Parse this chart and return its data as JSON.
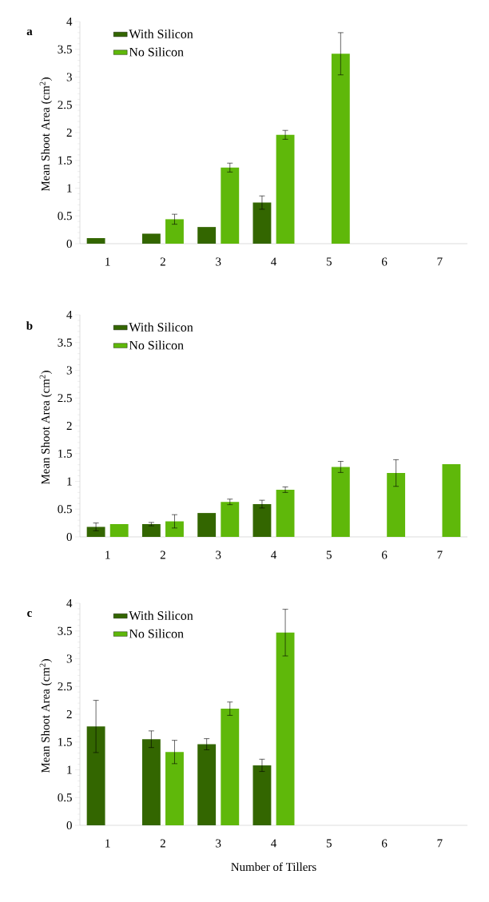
{
  "chart_data": [
    {
      "type": "bar",
      "title": "a",
      "ylabel": "Mean Shoot Area (cm$^{2}$)",
      "categories": [
        "1",
        "2",
        "3",
        "4",
        "5",
        "6",
        "7"
      ],
      "ylim": [
        0,
        4
      ],
      "yticks": [
        0,
        0.5,
        1,
        1.5,
        2,
        2.5,
        3,
        3.5,
        4
      ],
      "legend": "top left",
      "series": [
        {
          "name": "With Silicon",
          "color": "#336600",
          "values": [
            0.1,
            0.18,
            0.3,
            0.74,
            null,
            null,
            null
          ],
          "errors": [
            null,
            null,
            null,
            0.12,
            null,
            null,
            null
          ]
        },
        {
          "name": "No Silicon",
          "color": "#5fb80a",
          "values": [
            null,
            0.44,
            1.37,
            1.96,
            3.42,
            null,
            null
          ],
          "errors": [
            null,
            0.09,
            0.08,
            0.08,
            0.38,
            null,
            null
          ]
        }
      ]
    },
    {
      "type": "bar",
      "title": "b",
      "ylabel": "Mean Shoot Area (cm$^{2}$)",
      "categories": [
        "1",
        "2",
        "3",
        "4",
        "5",
        "6",
        "7"
      ],
      "ylim": [
        0,
        4
      ],
      "yticks": [
        0,
        0.5,
        1,
        1.5,
        2,
        2.5,
        3,
        3.5,
        4
      ],
      "legend": "top left",
      "series": [
        {
          "name": "With Silicon",
          "color": "#336600",
          "values": [
            0.18,
            0.23,
            0.43,
            0.59,
            null,
            null,
            null
          ],
          "errors": [
            0.07,
            0.03,
            null,
            0.07,
            null,
            null,
            null
          ]
        },
        {
          "name": "No Silicon",
          "color": "#5fb80a",
          "values": [
            0.23,
            0.28,
            0.63,
            0.85,
            1.26,
            1.15,
            1.31
          ],
          "errors": [
            null,
            0.12,
            0.05,
            0.05,
            0.1,
            0.24,
            null
          ]
        }
      ]
    },
    {
      "type": "bar",
      "title": "c",
      "ylabel": "Mean Shoot Area (cm$^{2}$)",
      "xlabel": "Number of Tillers",
      "categories": [
        "1",
        "2",
        "3",
        "4",
        "5",
        "6",
        "7"
      ],
      "ylim": [
        0,
        4
      ],
      "yticks": [
        0,
        0.5,
        1,
        1.5,
        2,
        2.5,
        3,
        3.5,
        4
      ],
      "legend": "top left",
      "series": [
        {
          "name": "With Silicon",
          "color": "#336600",
          "values": [
            1.78,
            1.55,
            1.46,
            1.08,
            null,
            null,
            null
          ],
          "errors": [
            0.47,
            0.15,
            0.1,
            0.11,
            null,
            null,
            null
          ]
        },
        {
          "name": "No Silicon",
          "color": "#5fb80a",
          "values": [
            null,
            1.32,
            2.1,
            3.47,
            null,
            null,
            null
          ],
          "errors": [
            null,
            0.21,
            0.12,
            0.42,
            null,
            null,
            null
          ]
        }
      ]
    }
  ]
}
